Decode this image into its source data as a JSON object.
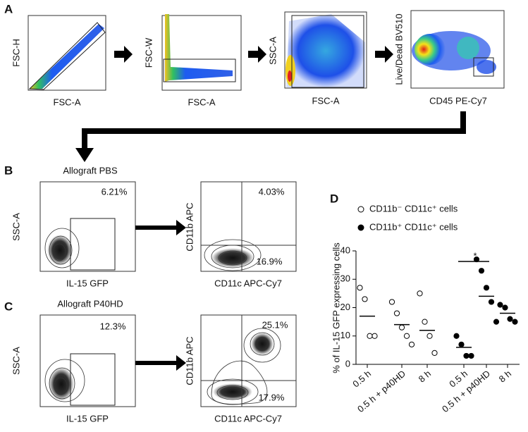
{
  "panels": {
    "A": {
      "label": "A",
      "plots": [
        {
          "ylabel": "FSC-H",
          "xlabel": "FSC-A"
        },
        {
          "ylabel": "FSC-W",
          "xlabel": "FSC-A"
        },
        {
          "ylabel": "SSC-A",
          "xlabel": "FSC-A"
        },
        {
          "ylabel": "Live/Dead BV510",
          "xlabel": "CD45 PE-Cy7"
        }
      ]
    },
    "B": {
      "label": "B",
      "title": "Allograft PBS",
      "gate_ylabel": "SSC-A",
      "gate_xlabel": "IL-15 GFP",
      "gate_pct": "6.21%",
      "quad_ylabel": "CD11b APC",
      "quad_xlabel": "CD11c APC-Cy7",
      "upper_pct": "4.03%",
      "lower_pct": "16.9%"
    },
    "C": {
      "label": "C",
      "title": "Allograft P40HD",
      "gate_ylabel": "SSC-A",
      "gate_xlabel": "IL-15 GFP",
      "gate_pct": "12.3%",
      "quad_ylabel": "CD11b APC",
      "quad_xlabel": "CD11c APC-Cy7",
      "upper_pct": "25.1%",
      "lower_pct": "17.9%"
    }
  },
  "chart_data": {
    "type": "strip",
    "panel_label": "D",
    "ylabel": "% of IL-15 GFP expressing cells",
    "categories": [
      "0.5 h",
      "0.5 h + p40HD",
      "8 h",
      "0.5 h",
      "0.5 h + p40HD",
      "8 h"
    ],
    "series": [
      {
        "name": "CD11b⁻ CD11c⁺ cells",
        "marker": "open",
        "values": [
          [
            27,
            23,
            10,
            10
          ],
          [
            22,
            18,
            13,
            10,
            7
          ],
          [
            25,
            15,
            10,
            4
          ],
          null,
          null,
          null
        ]
      },
      {
        "name": "CD11b⁺ CD11c⁺ cells",
        "marker": "filled",
        "values": [
          null,
          null,
          null,
          [
            10,
            7,
            3,
            3
          ],
          [
            37,
            33,
            27,
            22,
            15
          ],
          [
            21,
            20,
            16,
            15
          ]
        ]
      }
    ],
    "means": [
      17,
      14,
      12,
      6,
      24,
      18
    ],
    "annotation": "*",
    "ylim": [
      0,
      40
    ],
    "yticks": [
      0,
      10,
      20,
      30,
      40
    ]
  }
}
